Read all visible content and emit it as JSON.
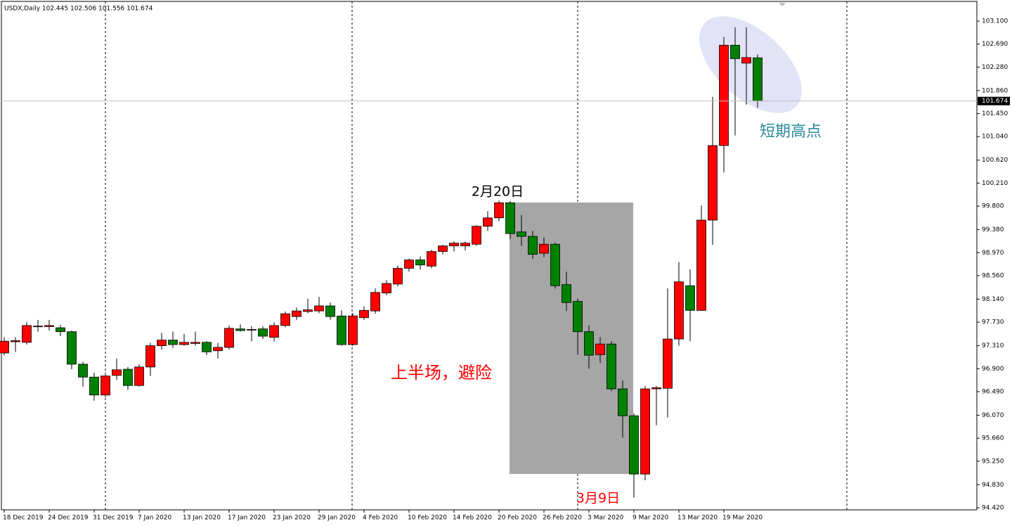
{
  "chart_data": {
    "type": "candlestick",
    "title": "USDX,Daily 102.445 102.506 101.556 101.674",
    "x": [
      "18 Dec 2019",
      null,
      null,
      null,
      "24 Dec 2019",
      null,
      null,
      null,
      "31 Dec 2019",
      null,
      null,
      null,
      "7 Jan 2020",
      null,
      null,
      null,
      "13 Jan 2020",
      null,
      null,
      null,
      "17 Jan 2020",
      null,
      null,
      null,
      "23 Jan 2020",
      null,
      null,
      null,
      "29 Jan 2020",
      null,
      null,
      null,
      "4 Feb 2020",
      null,
      null,
      null,
      "10 Feb 2020",
      null,
      null,
      null,
      "14 Feb 2020",
      null,
      null,
      null,
      "20 Feb 2020",
      null,
      null,
      null,
      "26 Feb 2020",
      null,
      null,
      null,
      "3 Mar 2020",
      null,
      null,
      null,
      "9 Mar 2020",
      null,
      null,
      null,
      "13 Mar 2020",
      null,
      null,
      null,
      "19 Mar 2020",
      null,
      null,
      null
    ],
    "open": [
      97.18,
      97.38,
      97.37,
      97.65,
      97.65,
      97.63,
      97.56,
      96.98,
      96.75,
      96.43,
      96.78,
      96.89,
      96.6,
      96.93,
      97.31,
      97.41,
      97.33,
      97.35,
      97.37,
      97.22,
      97.28,
      97.61,
      97.59,
      97.61,
      97.46,
      97.67,
      97.83,
      97.92,
      97.93,
      98.02,
      97.84,
      97.33,
      97.81,
      97.93,
      98.25,
      98.41,
      98.69,
      98.84,
      98.73,
      98.99,
      99.09,
      99.09,
      99.12,
      99.44,
      99.59,
      99.86,
      99.34,
      99.26,
      98.96,
      99.12,
      98.4,
      98.1,
      97.56,
      97.15,
      97.34,
      96.54,
      96.06,
      95.02,
      96.54,
      96.55,
      97.43,
      98.38,
      97.94,
      99.55,
      100.88,
      102.67,
      102.35,
      102.445
    ],
    "high": [
      97.46,
      97.46,
      97.73,
      97.77,
      97.77,
      97.68,
      97.58,
      97.02,
      96.83,
      96.83,
      97.08,
      96.93,
      96.98,
      97.36,
      97.54,
      97.56,
      97.52,
      97.56,
      97.39,
      97.36,
      97.67,
      97.69,
      97.66,
      97.66,
      97.73,
      97.92,
      97.99,
      98.15,
      98.18,
      98.08,
      97.94,
      97.89,
      98.01,
      98.33,
      98.48,
      98.74,
      98.86,
      98.9,
      99.02,
      99.11,
      99.17,
      99.17,
      99.46,
      99.71,
      99.9,
      99.89,
      99.64,
      99.36,
      99.24,
      99.15,
      98.63,
      98.15,
      97.67,
      97.46,
      97.39,
      96.69,
      96.1,
      96.59,
      96.59,
      98.33,
      98.8,
      98.67,
      99.81,
      101.75,
      102.82,
      102.99,
      102.99,
      102.506
    ],
    "low": [
      97.14,
      97.2,
      97.33,
      97.56,
      97.58,
      97.48,
      96.89,
      96.58,
      96.33,
      96.39,
      96.7,
      96.52,
      96.58,
      96.77,
      97.24,
      97.27,
      97.31,
      97.31,
      97.14,
      97.08,
      97.24,
      97.56,
      97.39,
      97.43,
      97.39,
      97.64,
      97.77,
      97.89,
      97.89,
      97.77,
      97.31,
      97.31,
      97.77,
      97.88,
      98.21,
      98.37,
      98.63,
      98.67,
      98.69,
      98.94,
      98.99,
      99.01,
      99.09,
      99.36,
      99.53,
      99.21,
      99.09,
      98.86,
      98.89,
      98.33,
      97.93,
      97.15,
      96.9,
      97.0,
      96.5,
      95.67,
      94.6,
      94.91,
      95.89,
      96.03,
      97.31,
      97.39,
      97.93,
      99.11,
      100.4,
      101.06,
      101.61,
      101.556
    ],
    "close": [
      97.39,
      97.4,
      97.67,
      97.66,
      97.67,
      97.56,
      96.98,
      96.75,
      96.43,
      96.77,
      96.88,
      96.6,
      96.93,
      97.31,
      97.41,
      97.33,
      97.37,
      97.37,
      97.2,
      97.28,
      97.62,
      97.58,
      97.6,
      97.48,
      97.67,
      97.88,
      97.93,
      97.95,
      98.02,
      97.83,
      97.33,
      97.84,
      97.94,
      98.26,
      98.42,
      98.69,
      98.84,
      98.75,
      98.99,
      99.09,
      99.14,
      99.14,
      99.44,
      99.59,
      99.86,
      99.31,
      99.26,
      98.94,
      99.12,
      98.38,
      98.08,
      97.56,
      97.14,
      97.34,
      96.54,
      96.06,
      95.02,
      96.54,
      96.56,
      97.43,
      98.45,
      97.94,
      99.55,
      100.88,
      102.67,
      102.43,
      102.45,
      101.674
    ],
    "up_color": "#ff0000",
    "down_color": "#008000",
    "ylim": [
      94.42,
      103.1
    ],
    "yticks": [
      {
        "value": 103.1,
        "label": "103.100"
      },
      {
        "value": 102.69,
        "label": "102.690"
      },
      {
        "value": 102.28,
        "label": "102.280"
      },
      {
        "value": 101.86,
        "label": "101.860"
      },
      {
        "value": 101.45,
        "label": "101.450"
      },
      {
        "value": 101.04,
        "label": "101.040"
      },
      {
        "value": 100.62,
        "label": "100.620"
      },
      {
        "value": 100.21,
        "label": "100.210"
      },
      {
        "value": 99.8,
        "label": "99.800"
      },
      {
        "value": 99.38,
        "label": "99.380"
      },
      {
        "value": 98.97,
        "label": "98.970"
      },
      {
        "value": 98.56,
        "label": "98.560"
      },
      {
        "value": 98.14,
        "label": "98.140"
      },
      {
        "value": 97.73,
        "label": "97.730"
      },
      {
        "value": 97.31,
        "label": "97.310"
      },
      {
        "value": 96.9,
        "label": "96.900"
      },
      {
        "value": 96.49,
        "label": "96.490"
      },
      {
        "value": 96.07,
        "label": "96.070"
      },
      {
        "value": 95.66,
        "label": "95.660"
      },
      {
        "value": 95.25,
        "label": "95.250"
      },
      {
        "value": 94.83,
        "label": "94.830"
      },
      {
        "value": 94.42,
        "label": "94.420"
      }
    ],
    "current_price": {
      "value": 101.674,
      "label": "101.674"
    },
    "annotations": [
      "2月20日",
      "上半场，避险",
      "3月9日",
      "短期高点"
    ]
  }
}
